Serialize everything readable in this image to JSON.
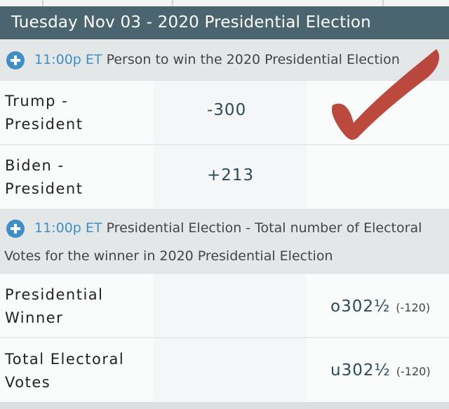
{
  "header": {
    "title": "Tuesday Nov 03 - 2020 Presidential Election"
  },
  "market1": {
    "time": "11:00p ET",
    "title": "Person to win the 2020 Presidential Election",
    "rows": [
      {
        "label_line1": "Trump -",
        "label_line2": "President",
        "odds": "-300"
      },
      {
        "label_line1": "Biden -",
        "label_line2": "President",
        "odds": "+213"
      }
    ]
  },
  "market2": {
    "time": "11:00p ET",
    "title_line1": "Presidential Election - Total number of Electoral",
    "title_line2": "Votes for the winner in 2020 Presidential Election",
    "rows": [
      {
        "label_line1": "Presidential",
        "label_line2": "Winner",
        "odds": "o302½",
        "price": "(-120)"
      },
      {
        "label_line1": "Total Electoral",
        "label_line2": "Votes",
        "odds": "u302½",
        "price": "(-120)"
      }
    ]
  },
  "annotation": {
    "icon": "red-checkmark-icon",
    "color": "#b53a2e"
  },
  "colors": {
    "header_bg": "#4a6470",
    "accent_blue": "#3f8fc5",
    "odds_text": "#2b4a5a"
  }
}
